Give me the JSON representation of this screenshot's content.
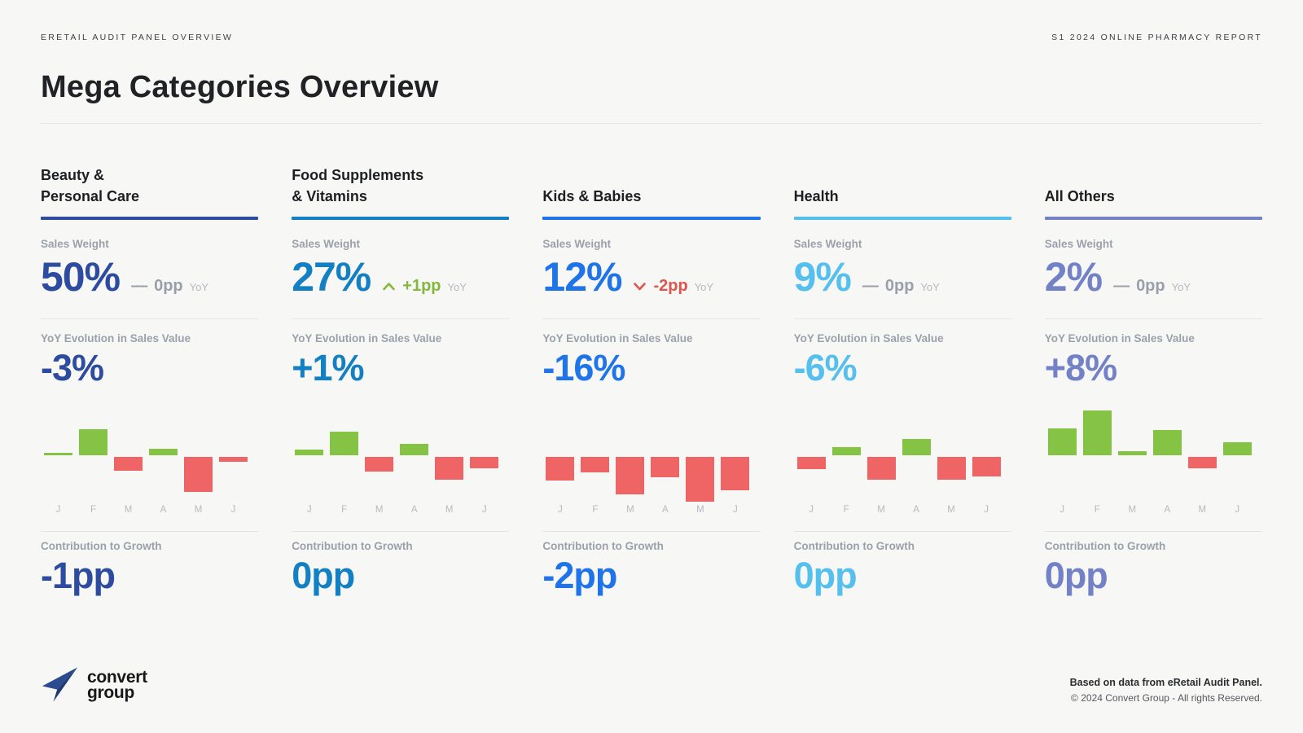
{
  "page": {
    "header_left": "ERETAIL AUDIT PANEL OVERVIEW",
    "header_right": "S1 2024 ONLINE PHARMACY REPORT",
    "title": "Mega Categories Overview",
    "footer_bold": "Based on data from eRetail Audit Panel.",
    "footer_copy": "© 2024 Convert Group - All rights Reserved.",
    "logo_line1": "convert",
    "logo_line2": "group"
  },
  "labels": {
    "sales_weight": "Sales Weight",
    "yoy_evolution": "YoY Evolution in Sales Value",
    "contribution": "Contribution to Growth",
    "yoy_suffix": "YoY"
  },
  "colors": {
    "positive_bar": "#84c343",
    "negative_bar": "#ef6565",
    "delta_up": "#84b83c",
    "delta_down": "#e0544c",
    "delta_flat": "#9aa0a9"
  },
  "months": [
    "J",
    "F",
    "M",
    "A",
    "M",
    "J"
  ],
  "categories": [
    {
      "title_line1": "Beauty &",
      "title_line2": "Personal Care",
      "accent": "#2d4ca0",
      "sales_weight_value": "50%",
      "delta_trend": "flat",
      "delta_value": "0pp",
      "yoy_evolution_value": "-3%",
      "contribution_value": "-1pp",
      "chart_values": [
        0.3,
        2.9,
        -1.5,
        0.7,
        -3.9,
        -0.5
      ]
    },
    {
      "title_line1": "Food Supplements",
      "title_line2": "& Vitamins",
      "accent": "#1280c2",
      "sales_weight_value": "27%",
      "delta_trend": "up",
      "delta_value": "+1pp",
      "yoy_evolution_value": "+1%",
      "contribution_value": "0pp",
      "chart_values": [
        0.6,
        2.6,
        -1.6,
        1.3,
        -2.5,
        -1.3
      ]
    },
    {
      "title_line1": "",
      "title_line2": "Kids & Babies",
      "accent": "#1e74e8",
      "sales_weight_value": "12%",
      "delta_trend": "down",
      "delta_value": "-2pp",
      "yoy_evolution_value": "-16%",
      "contribution_value": "-2pp",
      "chart_values": [
        -2.6,
        -1.7,
        -4.2,
        -2.3,
        -5.0,
        -3.7
      ]
    },
    {
      "title_line1": "",
      "title_line2": "Health",
      "accent": "#55c0ee",
      "sales_weight_value": "9%",
      "delta_trend": "flat",
      "delta_value": "0pp",
      "yoy_evolution_value": "-6%",
      "contribution_value": "0pp",
      "chart_values": [
        -1.4,
        0.9,
        -2.5,
        1.8,
        -2.5,
        -2.2
      ]
    },
    {
      "title_line1": "",
      "title_line2": "All Others",
      "accent": "#7381c6",
      "sales_weight_value": "2%",
      "delta_trend": "flat",
      "delta_value": "0pp",
      "yoy_evolution_value": "+8%",
      "contribution_value": "0pp",
      "chart_values": [
        3.0,
        5.0,
        0.5,
        2.8,
        -1.3,
        1.5
      ]
    }
  ],
  "chart_data": [
    {
      "type": "bar",
      "title": "Beauty & Personal Care — monthly YoY evolution",
      "categories": [
        "J",
        "F",
        "M",
        "A",
        "M",
        "J"
      ],
      "values": [
        0.3,
        2.9,
        -1.5,
        0.7,
        -3.9,
        -0.5
      ],
      "xlabel": "",
      "ylabel": "",
      "axis": "none (sparkline, values estimated in relative units)",
      "positive_color": "#84c343",
      "negative_color": "#ef6565",
      "legend": "off",
      "grid": "off"
    },
    {
      "type": "bar",
      "title": "Food Supplements & Vitamins — monthly YoY evolution",
      "categories": [
        "J",
        "F",
        "M",
        "A",
        "M",
        "J"
      ],
      "values": [
        0.6,
        2.6,
        -1.6,
        1.3,
        -2.5,
        -1.3
      ],
      "xlabel": "",
      "ylabel": "",
      "axis": "none (sparkline, values estimated in relative units)",
      "positive_color": "#84c343",
      "negative_color": "#ef6565",
      "legend": "off",
      "grid": "off"
    },
    {
      "type": "bar",
      "title": "Kids & Babies — monthly YoY evolution",
      "categories": [
        "J",
        "F",
        "M",
        "A",
        "M",
        "J"
      ],
      "values": [
        -2.6,
        -1.7,
        -4.2,
        -2.3,
        -5.0,
        -3.7
      ],
      "xlabel": "",
      "ylabel": "",
      "axis": "none (sparkline, values estimated in relative units)",
      "positive_color": "#84c343",
      "negative_color": "#ef6565",
      "legend": "off",
      "grid": "off"
    },
    {
      "type": "bar",
      "title": "Health — monthly YoY evolution",
      "categories": [
        "J",
        "F",
        "M",
        "A",
        "M",
        "J"
      ],
      "values": [
        -1.4,
        0.9,
        -2.5,
        1.8,
        -2.5,
        -2.2
      ],
      "xlabel": "",
      "ylabel": "",
      "axis": "none (sparkline, values estimated in relative units)",
      "positive_color": "#84c343",
      "negative_color": "#ef6565",
      "legend": "off",
      "grid": "off"
    },
    {
      "type": "bar",
      "title": "All Others — monthly YoY evolution",
      "categories": [
        "J",
        "F",
        "M",
        "A",
        "M",
        "J"
      ],
      "values": [
        3.0,
        5.0,
        0.5,
        2.8,
        -1.3,
        1.5
      ],
      "xlabel": "",
      "ylabel": "",
      "axis": "none (sparkline, values estimated in relative units)",
      "positive_color": "#84c343",
      "negative_color": "#ef6565",
      "legend": "off",
      "grid": "off"
    }
  ]
}
